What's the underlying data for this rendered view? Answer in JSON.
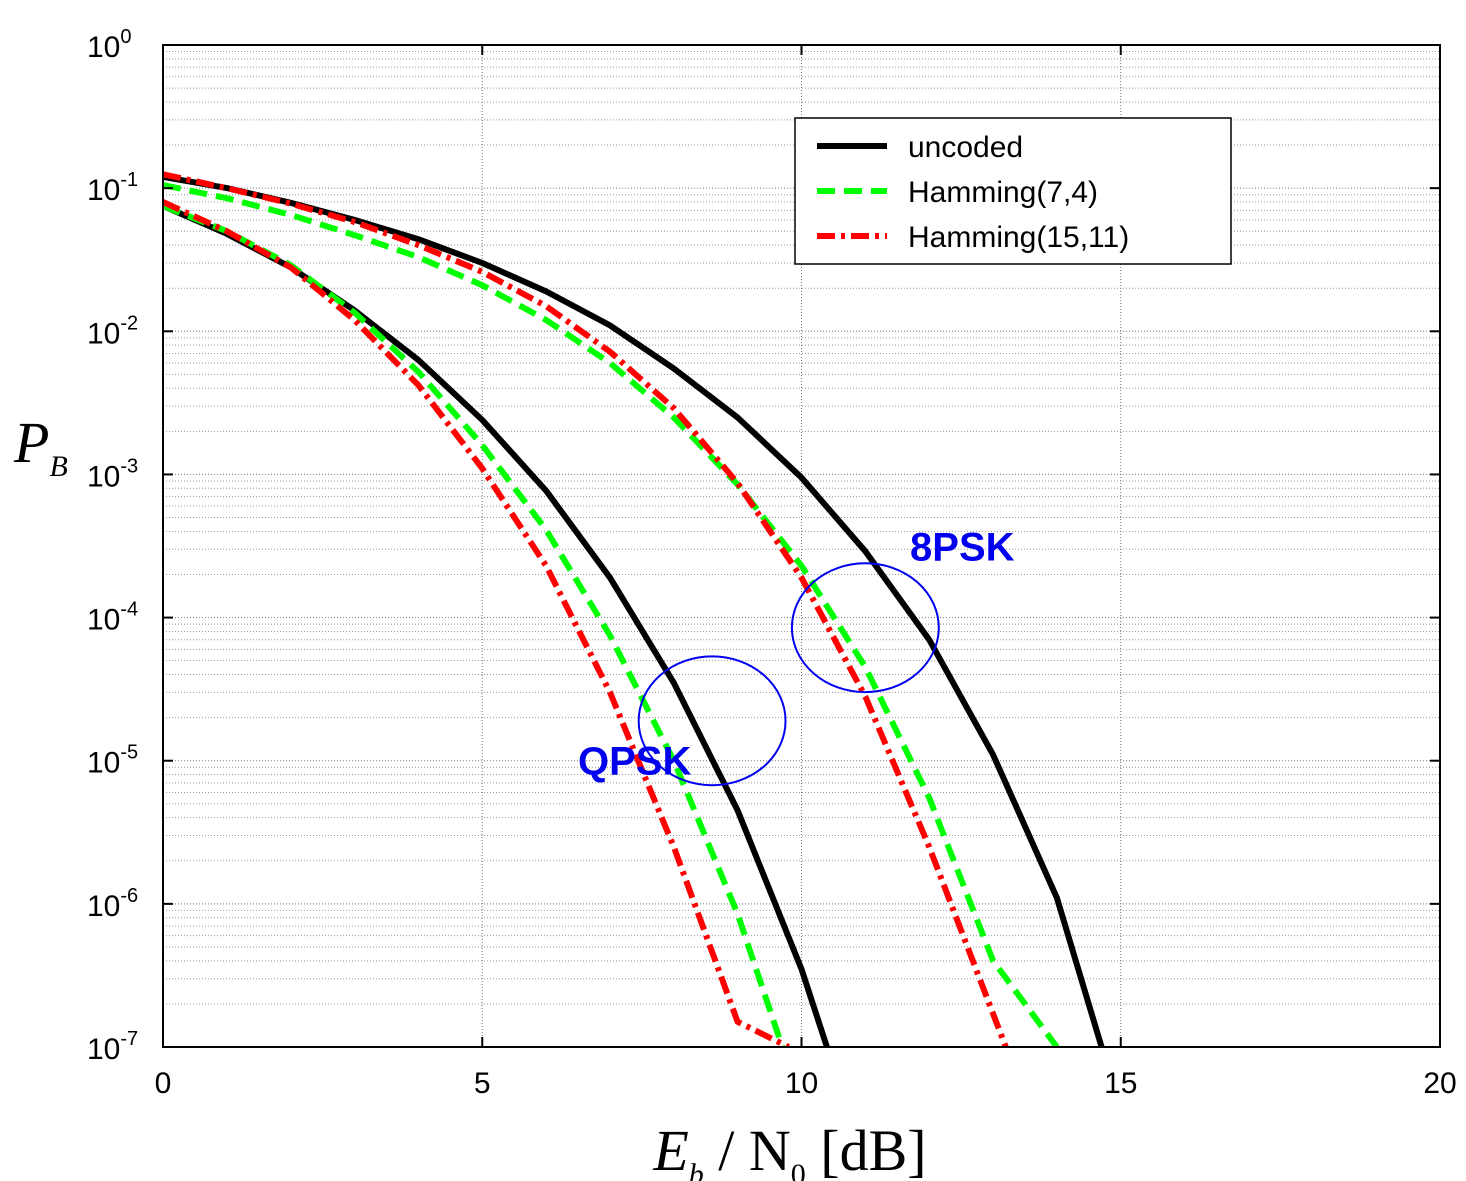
{
  "chart_data": {
    "type": "line",
    "xlabel": {
      "parts": [
        "E",
        "b",
        " / N",
        "0",
        " [dB]"
      ]
    },
    "ylabel": {
      "parts": [
        "P",
        "B"
      ]
    },
    "xlim": [
      0,
      20
    ],
    "ylim": [
      1e-07,
      1
    ],
    "yscale": "log",
    "grid": true,
    "x_ticks": [
      0,
      5,
      10,
      15,
      20
    ],
    "y_ticks": [
      {
        "base": "10",
        "exp": "0",
        "value": 1
      },
      {
        "base": "10",
        "exp": "-1",
        "value": 0.1
      },
      {
        "base": "10",
        "exp": "-2",
        "value": 0.01
      },
      {
        "base": "10",
        "exp": "-3",
        "value": 0.001
      },
      {
        "base": "10",
        "exp": "-4",
        "value": 0.0001
      },
      {
        "base": "10",
        "exp": "-5",
        "value": 1e-05
      },
      {
        "base": "10",
        "exp": "-6",
        "value": 1e-06
      },
      {
        "base": "10",
        "exp": "-7",
        "value": 1e-07
      }
    ],
    "legend": {
      "placement": "top-right",
      "entries": [
        {
          "label": "uncoded",
          "color": "#000000",
          "dash": "solid"
        },
        {
          "label": "Hamming(7,4)",
          "color": "#00ff00",
          "dash": "dashed"
        },
        {
          "label": "Hamming(15,11)",
          "color": "#ff0000",
          "dash": "dashdot"
        }
      ]
    },
    "series": [
      {
        "group": "QPSK",
        "style": 0,
        "x": [
          0,
          1,
          2,
          3,
          4,
          5,
          6,
          7,
          8,
          9,
          10,
          11,
          11.2
        ],
        "y": [
          0.075,
          0.048,
          0.028,
          0.014,
          0.0063,
          0.0024,
          0.00077,
          0.00019,
          3.5e-05,
          4.5e-06,
          3.5e-07,
          1.5e-08,
          1e-07
        ]
      },
      {
        "group": "QPSK",
        "style": 1,
        "x": [
          0,
          1,
          2,
          3,
          4,
          5,
          6,
          7,
          8,
          9,
          10,
          10.7
        ],
        "y": [
          0.075,
          0.05,
          0.029,
          0.0135,
          0.0052,
          0.0016,
          0.00041,
          7.5e-05,
          1e-05,
          8.5e-07,
          4e-08,
          1e-07
        ]
      },
      {
        "group": "QPSK",
        "style": 2,
        "x": [
          0,
          1,
          2,
          3,
          4,
          5,
          6,
          7,
          8,
          9,
          9.8
        ],
        "y": [
          0.08,
          0.05,
          0.028,
          0.012,
          0.0042,
          0.0011,
          0.00023,
          3e-05,
          2.5e-06,
          1.5e-07,
          1e-07
        ]
      },
      {
        "group": "8PSK",
        "style": 0,
        "x": [
          0,
          1,
          2,
          3,
          4,
          5,
          6,
          7,
          8,
          9,
          10,
          11,
          12,
          13,
          14,
          14.7
        ],
        "y": [
          0.12,
          0.1,
          0.079,
          0.06,
          0.044,
          0.03,
          0.019,
          0.011,
          0.0055,
          0.0025,
          0.00095,
          0.00029,
          7e-05,
          1.1e-05,
          1.1e-06,
          1e-07
        ]
      },
      {
        "group": "8PSK",
        "style": 1,
        "x": [
          0,
          1,
          2,
          3,
          4,
          5,
          6,
          7,
          8,
          9,
          10,
          11,
          12,
          13,
          14
        ],
        "y": [
          0.105,
          0.085,
          0.065,
          0.047,
          0.033,
          0.021,
          0.012,
          0.006,
          0.0025,
          0.00085,
          0.00023,
          4.5e-05,
          5.5e-06,
          4e-07,
          1e-07
        ]
      },
      {
        "group": "8PSK",
        "style": 2,
        "x": [
          0,
          1,
          2,
          3,
          4,
          5,
          6,
          7,
          8,
          9,
          10,
          11,
          12,
          13.2
        ],
        "y": [
          0.125,
          0.1,
          0.078,
          0.058,
          0.04,
          0.026,
          0.015,
          0.0072,
          0.0029,
          0.00087,
          0.00019,
          2.8e-05,
          2.5e-06,
          1e-07
        ]
      }
    ],
    "annotations": [
      {
        "text": "8PSK",
        "color": "#0000ee",
        "x": 11.7,
        "y": 0.00025
      },
      {
        "text": "QPSK",
        "color": "#0000ee",
        "x": 6.5,
        "y": 8e-06
      }
    ],
    "ellipses": [
      {
        "cx": 11.0,
        "cy": 8.5e-05,
        "rx_data": 1.15,
        "ry_decades": 0.45,
        "color": "#0000ee"
      },
      {
        "cx": 8.6,
        "cy": 1.9e-05,
        "rx_data": 1.15,
        "ry_decades": 0.45,
        "color": "#0000ee"
      }
    ]
  }
}
